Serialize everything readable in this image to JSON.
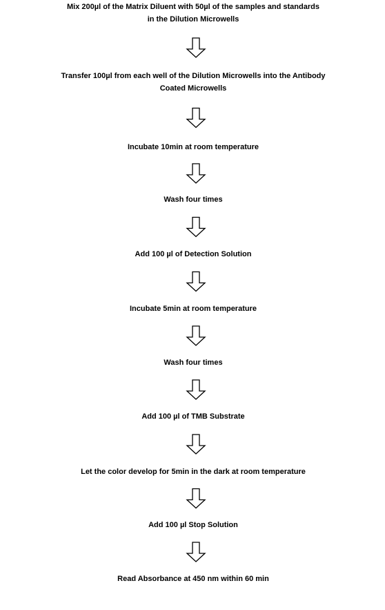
{
  "steps": [
    [
      "Mix 200µl of the Matrix Diluent with 50µl of the samples and standards",
      "in the Dilution Microwells"
    ],
    [
      "Transfer 100µl from each well of the Dilution Microwells into the Antibody",
      "Coated Microwells"
    ],
    [
      "Incubate 10min at room temperature"
    ],
    [
      "Wash four times"
    ],
    [
      "Add 100 µl of Detection Solution"
    ],
    [
      "Incubate 5min at room temperature"
    ],
    [
      "Wash four times"
    ],
    [
      "Add 100 µl of TMB Substrate"
    ],
    [
      "Let the color develop for 5min in the dark at room temperature"
    ],
    [
      "Add 100 µl Stop Solution"
    ],
    [
      "Read Absorbance at 450 nm within 60 min"
    ]
  ]
}
